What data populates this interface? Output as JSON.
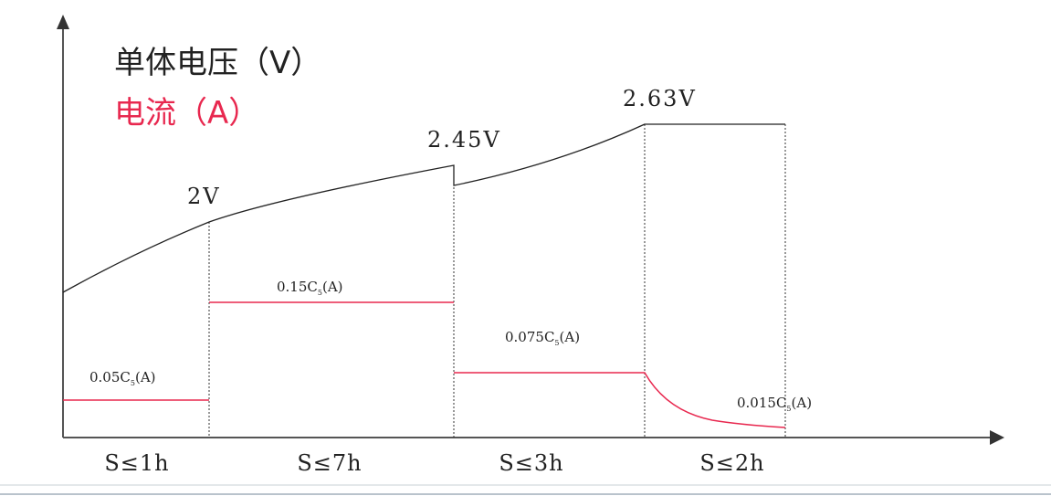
{
  "legend": {
    "voltage": "单体电压（V）",
    "current": "电流（A）"
  },
  "colors": {
    "voltage": "#222222",
    "current": "#e8284f",
    "axis": "#555555"
  },
  "voltage_labels": [
    "2V",
    "2.45V",
    "2.63V"
  ],
  "current_labels": [
    {
      "main": "0.05C",
      "sub": "5",
      "unit": "(A)"
    },
    {
      "main": "0.15C",
      "sub": "5",
      "unit": "(A)"
    },
    {
      "main": "0.075C",
      "sub": "5",
      "unit": "(A)"
    },
    {
      "main": "0.015C",
      "sub": "5",
      "unit": "(A)"
    }
  ],
  "stage_durations": [
    "S≤1h",
    "S≤7h",
    "S≤3h",
    "S≤2h"
  ]
}
